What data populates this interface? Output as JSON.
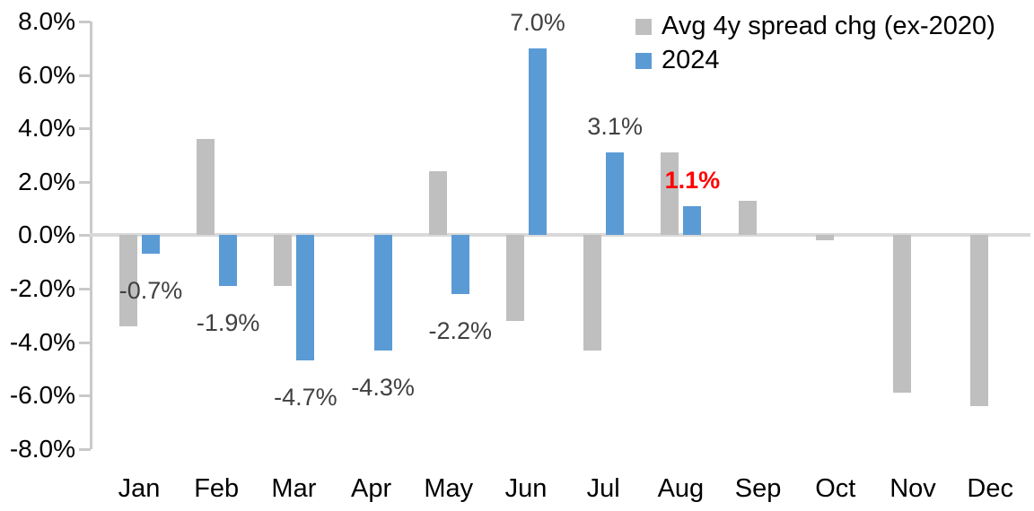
{
  "chart_data": {
    "type": "bar",
    "title": "",
    "xlabel": "",
    "ylabel": "",
    "categories": [
      "Jan",
      "Feb",
      "Mar",
      "Apr",
      "May",
      "Jun",
      "Jul",
      "Aug",
      "Sep",
      "Oct",
      "Nov",
      "Dec"
    ],
    "series": [
      {
        "name": "Avg 4y spread chg (ex-2020)",
        "color": "#bfbfbf",
        "values": [
          -3.4,
          3.6,
          -1.9,
          0.0,
          2.4,
          -3.2,
          -4.3,
          3.1,
          1.3,
          -0.2,
          -5.9,
          -6.4
        ]
      },
      {
        "name": "2024",
        "color": "#5b9bd5",
        "values": [
          -0.7,
          -1.9,
          -4.7,
          -4.3,
          -2.2,
          7.0,
          3.1,
          1.1,
          null,
          null,
          null,
          null
        ]
      }
    ],
    "data_labels": [
      {
        "category": "Jan",
        "text": "-0.7%",
        "color": "#404040",
        "bold": false
      },
      {
        "category": "Feb",
        "text": "-1.9%",
        "color": "#404040",
        "bold": false
      },
      {
        "category": "Mar",
        "text": "-4.7%",
        "color": "#404040",
        "bold": false
      },
      {
        "category": "Apr",
        "text": "-4.3%",
        "color": "#404040",
        "bold": false
      },
      {
        "category": "May",
        "text": "-2.2%",
        "color": "#404040",
        "bold": false
      },
      {
        "category": "Jun",
        "text": "7.0%",
        "color": "#404040",
        "bold": false
      },
      {
        "category": "Jul",
        "text": "3.1%",
        "color": "#404040",
        "bold": false
      },
      {
        "category": "Aug",
        "text": "1.1%",
        "color": "#ff0000",
        "bold": true
      }
    ],
    "y_axis": {
      "ticks": [
        "8.0%",
        "6.0%",
        "4.0%",
        "2.0%",
        "0.0%",
        "-2.0%",
        "-4.0%",
        "-6.0%",
        "-8.0%"
      ],
      "min": -8.0,
      "max": 8.0,
      "step": 2.0
    },
    "ylim": [
      -8.0,
      8.0
    ],
    "grid": false,
    "legend_position": "top-right",
    "colors": {
      "axis": "#c9c9c9",
      "zero_line": "#d9d9d9",
      "background": "#ffffff",
      "label_default": "#404040",
      "label_highlight": "#ff0000"
    }
  }
}
